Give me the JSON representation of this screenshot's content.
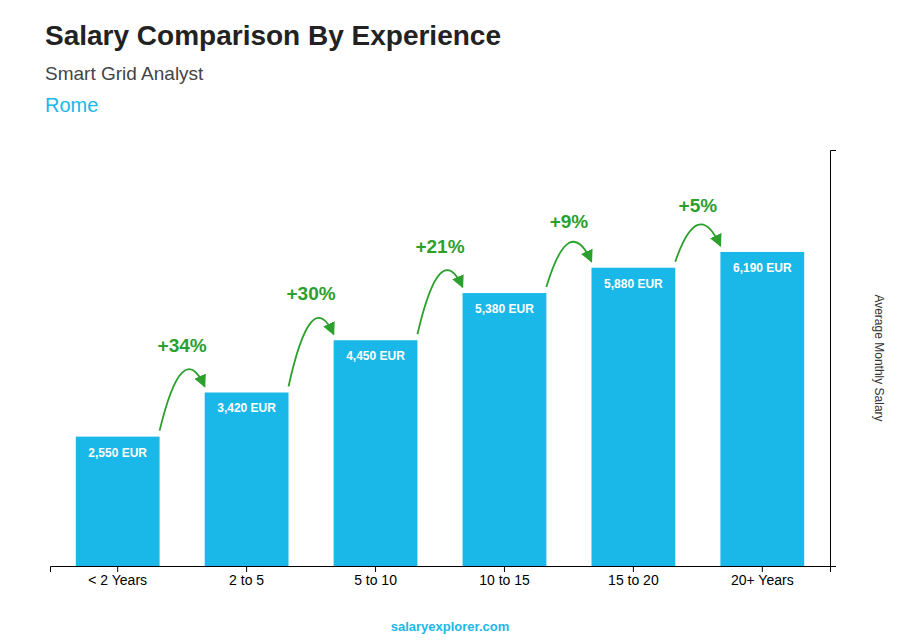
{
  "chart_data": {
    "type": "bar",
    "title": "Salary Comparison By Experience",
    "subtitle": "Smart Grid Analyst",
    "ylabel": "Average Monthly Salary",
    "categories": [
      "< 2 Years",
      "2 to 5",
      "5 to 10",
      "10 to 15",
      "15 to 20",
      "20+ Years"
    ],
    "values": [
      2550,
      3420,
      4450,
      5380,
      5880,
      6190
    ],
    "value_labels": [
      "2,550 EUR",
      "3,420 EUR",
      "4,450 EUR",
      "5,380 EUR",
      "5,880 EUR",
      "6,190 EUR"
    ],
    "data_labels": true,
    "color": "#1ab8e8",
    "ylim": [
      0,
      8200
    ],
    "tick_labels": "x",
    "grid": false,
    "annotations": [
      "Rome",
      "+34%",
      "+30%",
      "+21%",
      "+9%",
      "+5%",
      "salaryexplorer.com"
    ]
  }
}
